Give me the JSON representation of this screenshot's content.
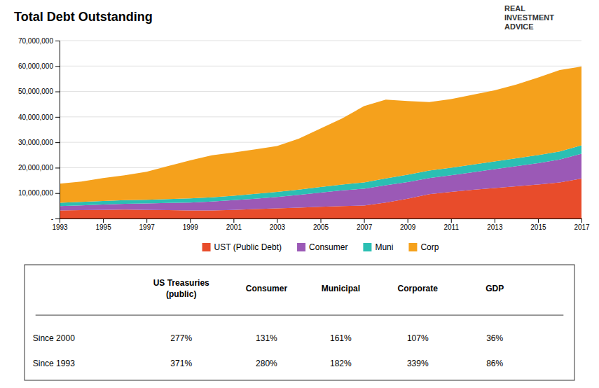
{
  "chart_data": {
    "type": "area",
    "stacked": true,
    "title": "Total Debt Outstanding",
    "x": [
      1993,
      1994,
      1995,
      1996,
      1997,
      1998,
      1999,
      2000,
      2001,
      2002,
      2003,
      2004,
      2005,
      2006,
      2007,
      2008,
      2009,
      2010,
      2011,
      2012,
      2013,
      2014,
      2015,
      2016,
      2017
    ],
    "series": [
      {
        "name": "UST (Public Debt)",
        "color": "#E84C2B",
        "values": [
          3200000,
          3300000,
          3400000,
          3500000,
          3400000,
          3300000,
          3200000,
          3200000,
          3400000,
          3700000,
          4000000,
          4300000,
          4600000,
          4900000,
          5100000,
          6300000,
          7800000,
          9600000,
          10500000,
          11300000,
          12000000,
          12700000,
          13400000,
          14200000,
          15700000
        ]
      },
      {
        "name": "Consumer",
        "color": "#9B59B6",
        "values": [
          1700000,
          1900000,
          2100000,
          2300000,
          2500000,
          2800000,
          3100000,
          3500000,
          3800000,
          4100000,
          4500000,
          5000000,
          5600000,
          6200000,
          6600000,
          6800000,
          6500000,
          6300000,
          6500000,
          6900000,
          7400000,
          7900000,
          8400000,
          9000000,
          9800000
        ]
      },
      {
        "name": "Muni",
        "color": "#2BBFB3",
        "values": [
          1300000,
          1350000,
          1400000,
          1450000,
          1500000,
          1550000,
          1600000,
          1650000,
          1750000,
          1900000,
          2000000,
          2100000,
          2200000,
          2300000,
          2500000,
          2700000,
          2900000,
          2950000,
          2980000,
          3020000,
          3050000,
          3100000,
          3150000,
          3200000,
          3300000
        ]
      },
      {
        "name": "Corp",
        "color": "#F5A11C",
        "values": [
          7500000,
          8000000,
          9000000,
          9800000,
          11000000,
          13000000,
          15000000,
          16500000,
          17000000,
          17500000,
          18000000,
          20000000,
          23000000,
          26000000,
          30000000,
          31000000,
          29000000,
          27000000,
          27000000,
          27500000,
          28000000,
          29000000,
          30500000,
          32000000,
          31000000
        ]
      }
    ],
    "xlim": [
      1993,
      2017
    ],
    "xticks": [
      1993,
      1995,
      1997,
      1999,
      2001,
      2003,
      2005,
      2007,
      2009,
      2011,
      2013,
      2015,
      2017
    ],
    "ylim": [
      0,
      70000000
    ],
    "yticks": [
      {
        "value": 0,
        "label": "-"
      },
      {
        "value": 10000000,
        "label": "10,000,000"
      },
      {
        "value": 20000000,
        "label": "20,000,000"
      },
      {
        "value": 30000000,
        "label": "30,000,000"
      },
      {
        "value": 40000000,
        "label": "40,000,000"
      },
      {
        "value": 50000000,
        "label": "50,000,000"
      },
      {
        "value": 60000000,
        "label": "60,000,000"
      },
      {
        "value": 70000000,
        "label": "70,000,000"
      }
    ],
    "grid": true,
    "legend": "bottom",
    "annotations": [
      "REAL",
      "INVESTMENT",
      "ADVICE"
    ]
  },
  "table": {
    "headers": [
      "US Treasuries\n(public)",
      "Consumer",
      "Municipal",
      "Corporate",
      "GDP"
    ],
    "rows": [
      [
        "Since 2000",
        "277%",
        "131%",
        "161%",
        "107%",
        "36%"
      ],
      [
        "Since 1993",
        "371%",
        "280%",
        "182%",
        "339%",
        "86%"
      ]
    ]
  }
}
